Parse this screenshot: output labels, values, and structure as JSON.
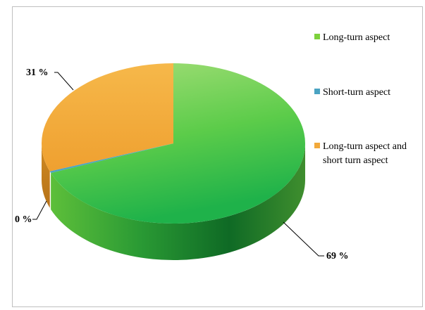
{
  "chart_data": {
    "type": "pie",
    "style": "3d",
    "title": "",
    "categories": [
      "Long-turn aspect",
      "Short-turn aspect",
      "Long-turn aspect and short turn aspect"
    ],
    "values": [
      69,
      0,
      31
    ],
    "value_labels": [
      "69 %",
      "0 %",
      "31 %"
    ],
    "legend": {
      "placement": "right",
      "items": [
        {
          "label": "Long-turn aspect",
          "color": "#7dd13c"
        },
        {
          "label": "Short-turn aspect",
          "color": "#4aa3c2"
        },
        {
          "label_lines": [
            "Long-turn aspect and",
            "short turn aspect"
          ],
          "color": "#f2a93b"
        }
      ]
    },
    "colors": {
      "long": "#7dd13c",
      "short": "#4aa3c2",
      "both": "#f2a93b"
    }
  }
}
